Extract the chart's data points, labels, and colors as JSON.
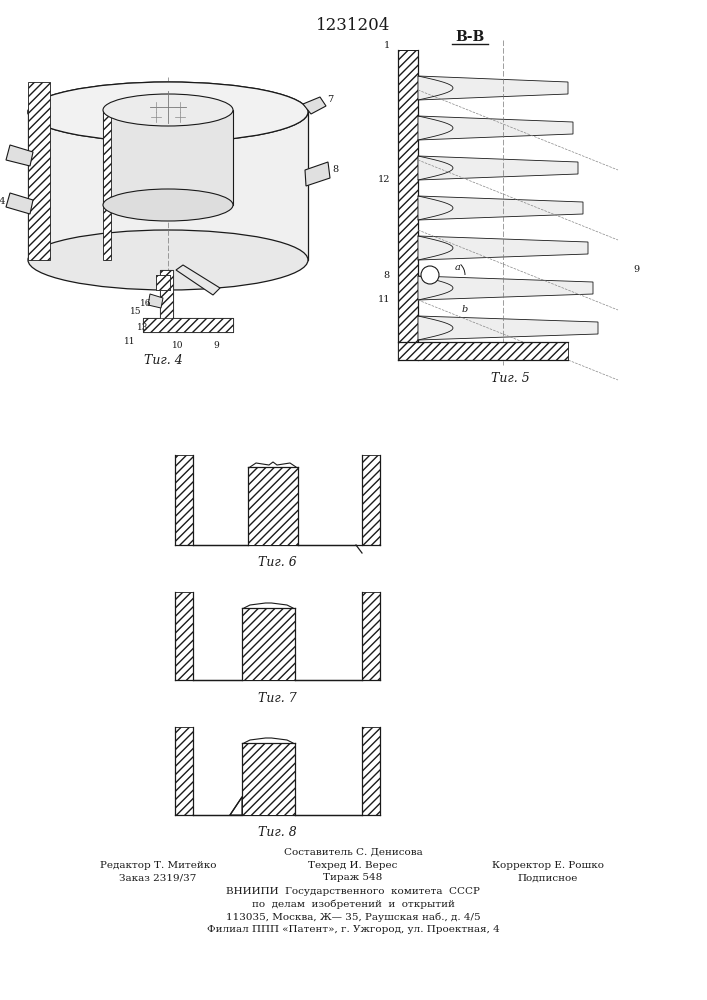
{
  "title": "1231204",
  "bg_color": "#ffffff",
  "line_color": "#1a1a1a",
  "fig6_label": "Τиг. 6",
  "fig7_label": "Τиг. 7",
  "fig8_label": "Τиг. 8",
  "fig4_label": "Τиг. 4",
  "fig5_label": "Τиг. 5",
  "section_label": "В-В",
  "footer_line0": "Составитель С. Денисова",
  "footer_line1_left": "Редактор Т. Митейко",
  "footer_line1_mid": "Техред И. Верес",
  "footer_line1_right": "Корректор Е. Рошко",
  "footer_line2_left": "Заказ 2319/37",
  "footer_line2_mid": "Тираж 548",
  "footer_line2_right": "Подписное",
  "footer_line3": "ВНИИПИ  Государственного  комитета  СССР",
  "footer_line4": "по  делам  изобретений  и  открытий",
  "footer_line5": "113035, Москва, Ж— 35, Раушская наб., д. 4/5",
  "footer_line6": "Филиал ППП «Патент», г. Ужгород, ул. Проектная, 4"
}
